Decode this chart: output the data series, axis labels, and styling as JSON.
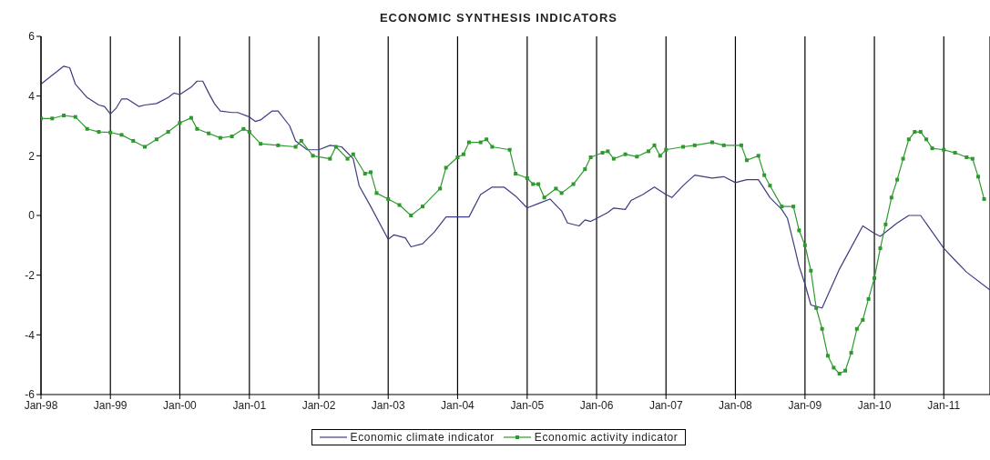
{
  "chart_data": {
    "type": "line",
    "title": "ECONOMIC SYNTHESIS INDICATORS",
    "xlim": [
      "1998-01",
      "2011-09"
    ],
    "xticks": [
      {
        "value": "1998-01",
        "label": "Jan-98"
      },
      {
        "value": "1999-01",
        "label": "Jan-99"
      },
      {
        "value": "2000-01",
        "label": "Jan-00"
      },
      {
        "value": "2001-01",
        "label": "Jan-01"
      },
      {
        "value": "2002-01",
        "label": "Jan-02"
      },
      {
        "value": "2003-01",
        "label": "Jan-03"
      },
      {
        "value": "2004-01",
        "label": "Jan-04"
      },
      {
        "value": "2005-01",
        "label": "Jan-05"
      },
      {
        "value": "2006-01",
        "label": "Jan-06"
      },
      {
        "value": "2007-01",
        "label": "Jan-07"
      },
      {
        "value": "2008-01",
        "label": "Jan-08"
      },
      {
        "value": "2009-01",
        "label": "Jan-09"
      },
      {
        "value": "2010-01",
        "label": "Jan-10"
      },
      {
        "value": "2011-01",
        "label": "Jan-11"
      }
    ],
    "ylim": [
      -6,
      6
    ],
    "yticks": [
      -6,
      -4,
      -2,
      0,
      2,
      4,
      6
    ],
    "grid": "x",
    "legend": "bottom",
    "series": [
      {
        "name": "Economic climate indicator",
        "color": "#3c3c82",
        "marker": "none",
        "x": [
          "1998-01",
          "1998-03",
          "1998-05",
          "1998-06",
          "1998-07",
          "1998-09",
          "1998-11",
          "1998-12",
          "1999-01",
          "1999-02",
          "1999-03",
          "1999-04",
          "1999-06",
          "1999-07",
          "1999-09",
          "1999-11",
          "1999-12",
          "2000-01",
          "2000-03",
          "2000-04",
          "2000-05",
          "2000-06",
          "2000-07",
          "2000-08",
          "2000-10",
          "2000-11",
          "2001-01",
          "2001-02",
          "2001-03",
          "2001-05",
          "2001-06",
          "2001-08",
          "2001-09",
          "2001-11",
          "2002-01",
          "2002-03",
          "2002-05",
          "2002-07",
          "2002-08",
          "2002-10",
          "2003-01",
          "2003-02",
          "2003-04",
          "2003-05",
          "2003-07",
          "2003-09",
          "2003-11",
          "2004-01",
          "2004-03",
          "2004-05",
          "2004-07",
          "2004-09",
          "2004-11",
          "2005-01",
          "2005-03",
          "2005-05",
          "2005-07",
          "2005-08",
          "2005-10",
          "2005-11",
          "2005-12",
          "2006-01",
          "2006-03",
          "2006-04",
          "2006-06",
          "2006-07",
          "2006-09",
          "2006-11",
          "2007-01",
          "2007-02",
          "2007-04",
          "2007-06",
          "2007-09",
          "2007-11",
          "2008-01",
          "2008-03",
          "2008-05",
          "2008-07",
          "2008-09",
          "2008-10",
          "2008-11",
          "2008-12",
          "2009-01",
          "2009-02",
          "2009-03",
          "2009-04",
          "2009-07",
          "2009-11",
          "2010-01",
          "2010-02",
          "2010-05",
          "2010-07",
          "2010-09",
          "2011-01",
          "2011-03",
          "2011-05",
          "2011-09"
        ],
        "values": [
          4.4,
          4.7,
          5.0,
          4.95,
          4.4,
          3.95,
          3.7,
          3.65,
          3.4,
          3.6,
          3.9,
          3.9,
          3.65,
          3.7,
          3.75,
          3.95,
          4.1,
          4.05,
          4.3,
          4.5,
          4.5,
          4.1,
          3.75,
          3.5,
          3.45,
          3.45,
          3.3,
          3.15,
          3.2,
          3.5,
          3.5,
          3.0,
          2.5,
          2.2,
          2.2,
          2.35,
          2.3,
          1.9,
          1.0,
          0.3,
          -0.8,
          -0.65,
          -0.75,
          -1.05,
          -0.95,
          -0.55,
          -0.05,
          -0.05,
          -0.05,
          0.7,
          0.95,
          0.95,
          0.65,
          0.25,
          0.4,
          0.55,
          0.15,
          -0.25,
          -0.35,
          -0.15,
          -0.2,
          -0.1,
          0.1,
          0.25,
          0.2,
          0.5,
          0.7,
          0.95,
          0.7,
          0.6,
          1.0,
          1.35,
          1.25,
          1.3,
          1.1,
          1.2,
          1.2,
          0.6,
          0.2,
          -0.1,
          -0.9,
          -1.7,
          -2.3,
          -3.0,
          -3.05,
          -3.1,
          -1.8,
          -0.35,
          -0.6,
          -0.7,
          -0.25,
          0.0,
          0.0,
          -1.1,
          -1.5,
          -1.9,
          -2.5
        ]
      },
      {
        "name": "Economic activity indicator",
        "color": "#2e9a2e",
        "marker": "square",
        "x": [
          "1998-01",
          "1998-03",
          "1998-05",
          "1998-07",
          "1998-09",
          "1998-11",
          "1999-01",
          "1999-03",
          "1999-05",
          "1999-07",
          "1999-09",
          "1999-11",
          "2000-01",
          "2000-03",
          "2000-04",
          "2000-06",
          "2000-08",
          "2000-10",
          "2000-12",
          "2001-01",
          "2001-03",
          "2001-06",
          "2001-09",
          "2001-10",
          "2001-12",
          "2002-03",
          "2002-04",
          "2002-06",
          "2002-07",
          "2002-09",
          "2002-10",
          "2002-11",
          "2003-01",
          "2003-03",
          "2003-05",
          "2003-07",
          "2003-10",
          "2003-11",
          "2004-01",
          "2004-02",
          "2004-03",
          "2004-05",
          "2004-06",
          "2004-07",
          "2004-10",
          "2004-11",
          "2005-01",
          "2005-02",
          "2005-03",
          "2005-04",
          "2005-06",
          "2005-07",
          "2005-09",
          "2005-11",
          "2005-12",
          "2006-02",
          "2006-03",
          "2006-04",
          "2006-06",
          "2006-08",
          "2006-10",
          "2006-11",
          "2006-12",
          "2007-01",
          "2007-04",
          "2007-06",
          "2007-09",
          "2007-11",
          "2008-02",
          "2008-03",
          "2008-05",
          "2008-06",
          "2008-07",
          "2008-09",
          "2008-11",
          "2008-12",
          "2009-01",
          "2009-02",
          "2009-03",
          "2009-04",
          "2009-05",
          "2009-06",
          "2009-07",
          "2009-08",
          "2009-09",
          "2009-10",
          "2009-11",
          "2009-12",
          "2010-01",
          "2010-02",
          "2010-03",
          "2010-04",
          "2010-05",
          "2010-06",
          "2010-07",
          "2010-08",
          "2010-09",
          "2010-10",
          "2010-11",
          "2011-01",
          "2011-03",
          "2011-05",
          "2011-06",
          "2011-07",
          "2011-08"
        ],
        "values": [
          3.25,
          3.25,
          3.35,
          3.3,
          2.9,
          2.8,
          2.78,
          2.7,
          2.5,
          2.3,
          2.55,
          2.8,
          3.1,
          3.27,
          2.9,
          2.75,
          2.6,
          2.65,
          2.9,
          2.8,
          2.4,
          2.35,
          2.3,
          2.5,
          2.0,
          1.9,
          2.3,
          1.9,
          2.05,
          1.4,
          1.45,
          0.75,
          0.55,
          0.35,
          0.0,
          0.3,
          0.9,
          1.6,
          1.95,
          2.05,
          2.45,
          2.45,
          2.55,
          2.3,
          2.2,
          1.4,
          1.25,
          1.05,
          1.05,
          0.6,
          0.9,
          0.75,
          1.05,
          1.55,
          1.95,
          2.1,
          2.15,
          1.9,
          2.05,
          1.97,
          2.15,
          2.35,
          2.0,
          2.2,
          2.3,
          2.35,
          2.45,
          2.35,
          2.35,
          1.85,
          2.0,
          1.35,
          1.0,
          0.3,
          0.3,
          -0.5,
          -1.0,
          -1.85,
          -3.1,
          -3.8,
          -4.7,
          -5.1,
          -5.3,
          -5.2,
          -4.6,
          -3.8,
          -3.5,
          -2.8,
          -2.1,
          -1.1,
          -0.3,
          0.6,
          1.2,
          1.9,
          2.55,
          2.8,
          2.8,
          2.55,
          2.25,
          2.2,
          2.1,
          1.95,
          1.9,
          1.3,
          0.55
        ]
      }
    ]
  }
}
